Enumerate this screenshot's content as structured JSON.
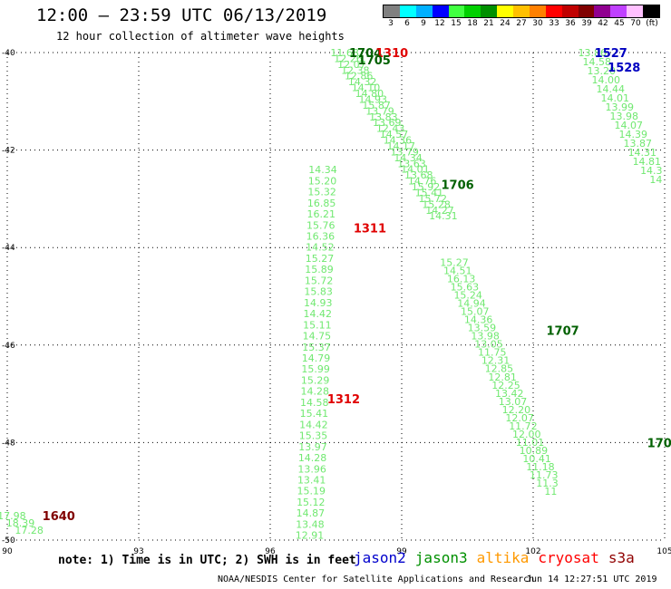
{
  "header": {
    "title": "12:00 – 23:59 UTC 06/13/2019",
    "subtitle": "12 hour collection of altimeter wave heights"
  },
  "color_scale": {
    "labels": [
      "3",
      "6",
      "9",
      "12",
      "15",
      "18",
      "21",
      "24",
      "27",
      "30",
      "33",
      "36",
      "39",
      "42",
      "45",
      "70",
      "(ft)"
    ],
    "colors": [
      "#808080",
      "#00ffff",
      "#00b0ff",
      "#0000ff",
      "#40ff40",
      "#00d000",
      "#009000",
      "#ffff00",
      "#ffc000",
      "#ff8000",
      "#ff0000",
      "#c00000",
      "#800000",
      "#900090",
      "#c040ff",
      "#ffc0ff",
      "#000000"
    ]
  },
  "map": {
    "lon_range": [
      90,
      105
    ],
    "lat_range": [
      -50,
      -40
    ],
    "lon_ticks": [
      "90",
      "93",
      "96",
      "99",
      "102",
      "105"
    ],
    "lat_ticks": [
      "-40",
      "-42",
      "-44",
      "-46",
      "-48",
      "-50"
    ],
    "track_labels": [
      {
        "text": "1704",
        "color": "#006000",
        "lon": 97.8,
        "lat": -40.0
      },
      {
        "text": "1310",
        "color": "#e00000",
        "lon": 98.4,
        "lat": -40.0
      },
      {
        "text": "1705",
        "color": "#006000",
        "lon": 98.0,
        "lat": -40.15
      },
      {
        "text": "1706",
        "color": "#006000",
        "lon": 99.9,
        "lat": -42.7
      },
      {
        "text": "1311",
        "color": "#e00000",
        "lon": 97.9,
        "lat": -43.6
      },
      {
        "text": "1707",
        "color": "#006000",
        "lon": 102.3,
        "lat": -45.7
      },
      {
        "text": "1312",
        "color": "#e00000",
        "lon": 97.3,
        "lat": -47.1
      },
      {
        "text": "1640",
        "color": "#800000",
        "lon": 90.8,
        "lat": -49.5
      },
      {
        "text": "1527",
        "color": "#0000c0",
        "lon": 103.4,
        "lat": -40.0
      },
      {
        "text": "1528",
        "color": "#0000c0",
        "lon": 103.7,
        "lat": -40.3
      },
      {
        "text": "170",
        "color": "#006000",
        "lon": 104.6,
        "lat": -48.0
      }
    ],
    "tracks": [
      {
        "name": "jason3-1704",
        "color": "#70e870",
        "lon_start": 97.7,
        "lat_start": -40.0,
        "lon_end": 99.95,
        "lat_end": -43.35,
        "values": [
          "11.68",
          "12.26",
          "12.07",
          "12.38",
          "12.86",
          "14.32",
          "14.10",
          "14.80",
          "14.93",
          "15.87",
          "13.79",
          "13.83",
          "13.69",
          "12.43",
          "14.57",
          "14.36",
          "14.17",
          "13.79",
          "14.34",
          "13.63",
          "14.01",
          "13.68",
          "14.76",
          "15.92",
          "15.41",
          "15.72",
          "15.28",
          "14.27",
          "14.31"
        ]
      },
      {
        "name": "jason3-1705",
        "color": "#70e870",
        "lon_start": 97.2,
        "lat_start": -42.4,
        "lon_end": 96.9,
        "lat_end": -49.9,
        "values": [
          "14.34",
          "15.20",
          "15.32",
          "16.85",
          "16.21",
          "15.76",
          "16.36",
          "14.52",
          "15.27",
          "15.89",
          "15.72",
          "15.83",
          "14.93",
          "14.42",
          "15.11",
          "14.75",
          "15.37",
          "14.79",
          "15.99",
          "15.29",
          "14.28",
          "14.58",
          "15.41",
          "14.42",
          "15.35",
          "13.97",
          "14.28",
          "13.96",
          "13.41",
          "15.19",
          "15.12",
          "14.87",
          "13.48",
          "12.91"
        ]
      },
      {
        "name": "jason3-1706",
        "color": "#70e870",
        "lon_start": 100.2,
        "lat_start": -44.3,
        "lon_end": 102.4,
        "lat_end": -49.0,
        "values": [
          "15.27",
          "14.51",
          "16.13",
          "15.63",
          "15.24",
          "14.94",
          "15.07",
          "14.36",
          "13.59",
          "13.98",
          "13.05",
          "11.75",
          "12.31",
          "12.85",
          "12.81",
          "12.25",
          "13.42",
          "13.07",
          "12.20",
          "12.07",
          "11.72",
          "12.00",
          "11.01",
          "10.89",
          "10.41",
          "11.18",
          "11.73",
          "11.3",
          "11"
        ]
      },
      {
        "name": "jason3-1707",
        "color": "#70e870",
        "lon_start": 103.35,
        "lat_start": -40.0,
        "lon_end": 104.8,
        "lat_end": -42.6,
        "values": [
          "13.86",
          "14.58",
          "13.20",
          "14.00",
          "14.44",
          "14.01",
          "13.99",
          "13.98",
          "14.07",
          "14.39",
          "13.87",
          "14.31",
          "14.81",
          "14.3",
          "14"
        ]
      },
      {
        "name": "altika-1640",
        "color": "#70e870",
        "lon_start": 90.1,
        "lat_start": -49.5,
        "lon_end": 90.5,
        "lat_end": -49.8,
        "values": [
          "17.98",
          "18.39",
          "17.28"
        ]
      }
    ]
  },
  "note": "note: 1) Time is in UTC; 2) SWH is in feet",
  "legend": [
    {
      "name": "jason2",
      "color": "#0000cc"
    },
    {
      "name": "jason3",
      "color": "#009000"
    },
    {
      "name": "altika",
      "color": "#ff9900"
    },
    {
      "name": "cryosat",
      "color": "#ff0000"
    },
    {
      "name": "s3a",
      "color": "#900000"
    }
  ],
  "footer": {
    "left": "NOAA/NESDIS Center for Satellite Applications and Research",
    "right": "Jun 14 12:27:51 UTC 2019"
  }
}
